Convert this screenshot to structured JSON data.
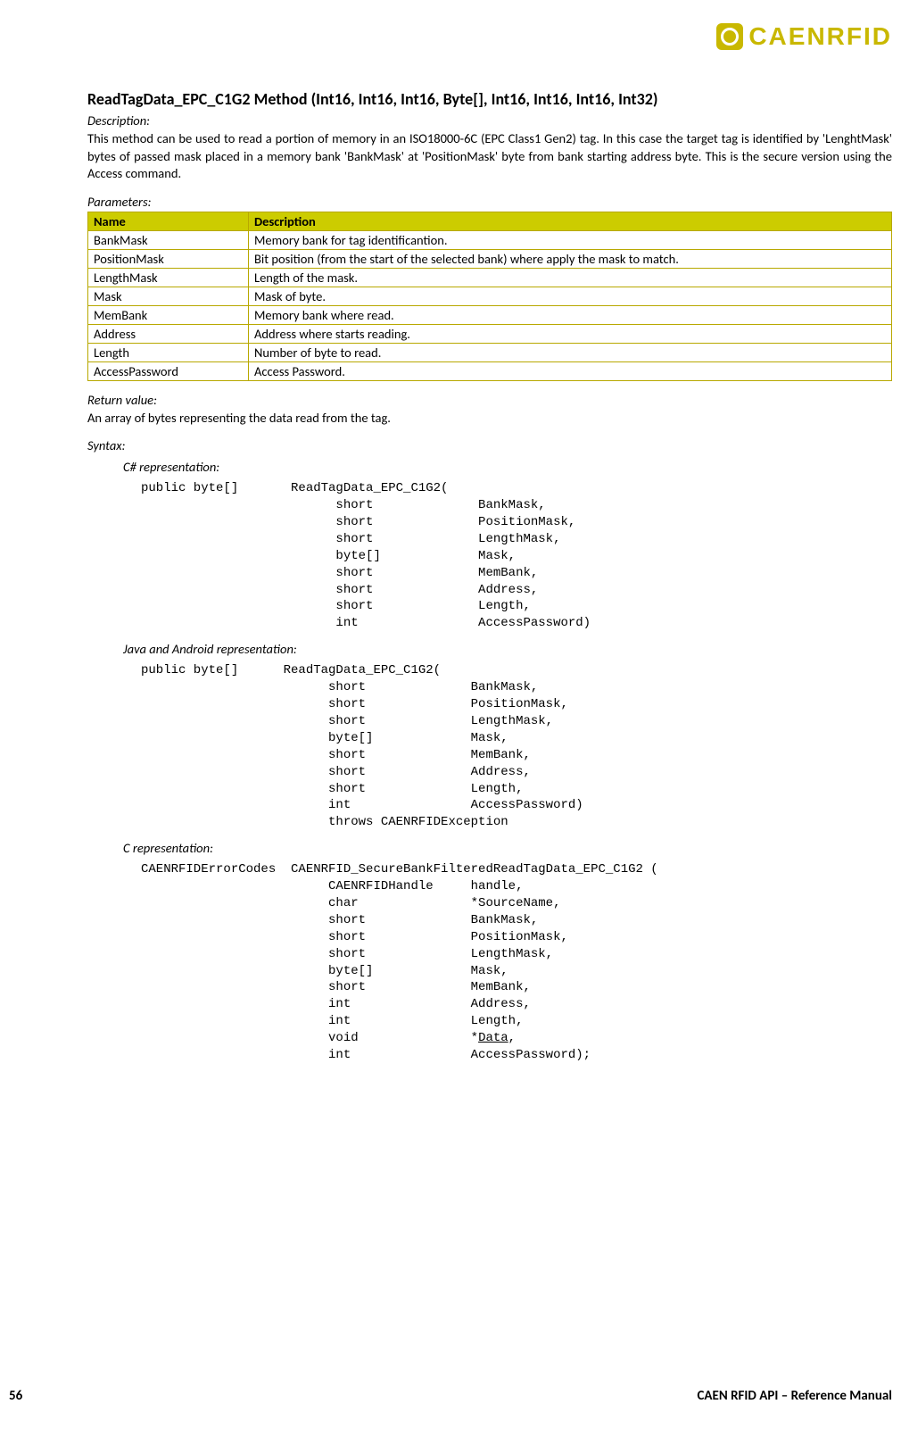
{
  "brand": "CAENRFID",
  "title": "ReadTagData_EPC_C1G2 Method (Int16, Int16, Int16, Byte[], Int16, Int16, Int16, Int32)",
  "labels": {
    "description": "Description:",
    "parameters": "Parameters:",
    "return": "Return value:",
    "syntax": "Syntax:",
    "csharp": "C# representation:",
    "java": "Java and Android representation:",
    "c": "C representation:"
  },
  "description_text": "This method can be used to read a portion of memory in an ISO18000-6C (EPC Class1 Gen2) tag. In this case the target tag is identified by 'LenghtMask' bytes of passed mask placed in a memory bank 'BankMask' at 'PositionMask' byte from bank starting address byte. This is the secure version using the Access command.",
  "params_header": {
    "name": "Name",
    "desc": "Description"
  },
  "params": [
    {
      "name": "BankMask",
      "desc": "Memory bank for tag identificantion."
    },
    {
      "name": "PositionMask",
      "desc": "Bit position (from the start of the selected bank) where apply the mask to match."
    },
    {
      "name": "LengthMask",
      "desc": "Length of the mask."
    },
    {
      "name": "Mask",
      "desc": "Mask of byte."
    },
    {
      "name": "MemBank",
      "desc": "Memory bank where read."
    },
    {
      "name": "Address",
      "desc": "Address where starts reading."
    },
    {
      "name": "Length",
      "desc": "Number of byte to read."
    },
    {
      "name": "AccessPassword",
      "desc": "Access Password."
    }
  ],
  "return_text": "An array of bytes representing the data read from the tag.",
  "code": {
    "csharp": "public byte[]       ReadTagData_EPC_C1G2(\n                          short              BankMask,\n                          short              PositionMask,\n                          short              LengthMask,\n                          byte[]             Mask,\n                          short              MemBank,\n                          short              Address,\n                          short              Length,\n                          int                AccessPassword)",
    "java": "public byte[]      ReadTagData_EPC_C1G2(\n                         short              BankMask,\n                         short              PositionMask,\n                         short              LengthMask,\n                         byte[]             Mask,\n                         short              MemBank,\n                         short              Address,\n                         short              Length,\n                         int                AccessPassword)\n                         throws CAENRFIDException",
    "c_pre": "CAENRFIDErrorCodes  CAENRFID_SecureBankFilteredReadTagData_EPC_C1G2 (\n                         CAENRFIDHandle     handle,\n                         char               *SourceName,\n                         short              BankMask,\n                         short              PositionMask,\n                         short              LengthMask,\n                         byte[]             Mask,\n                         short              MemBank,\n                         int                Address,\n                         int                Length,\n                         void               *",
    "c_data": "Data",
    "c_post": ",\n                         int                AccessPassword);"
  },
  "footer": {
    "page": "56",
    "manual": "CAEN RFID API – Reference Manual"
  },
  "colors": {
    "brand_yellow": "#c9b800",
    "table_header_bg": "#cccc00",
    "table_border": "#b8a800"
  }
}
